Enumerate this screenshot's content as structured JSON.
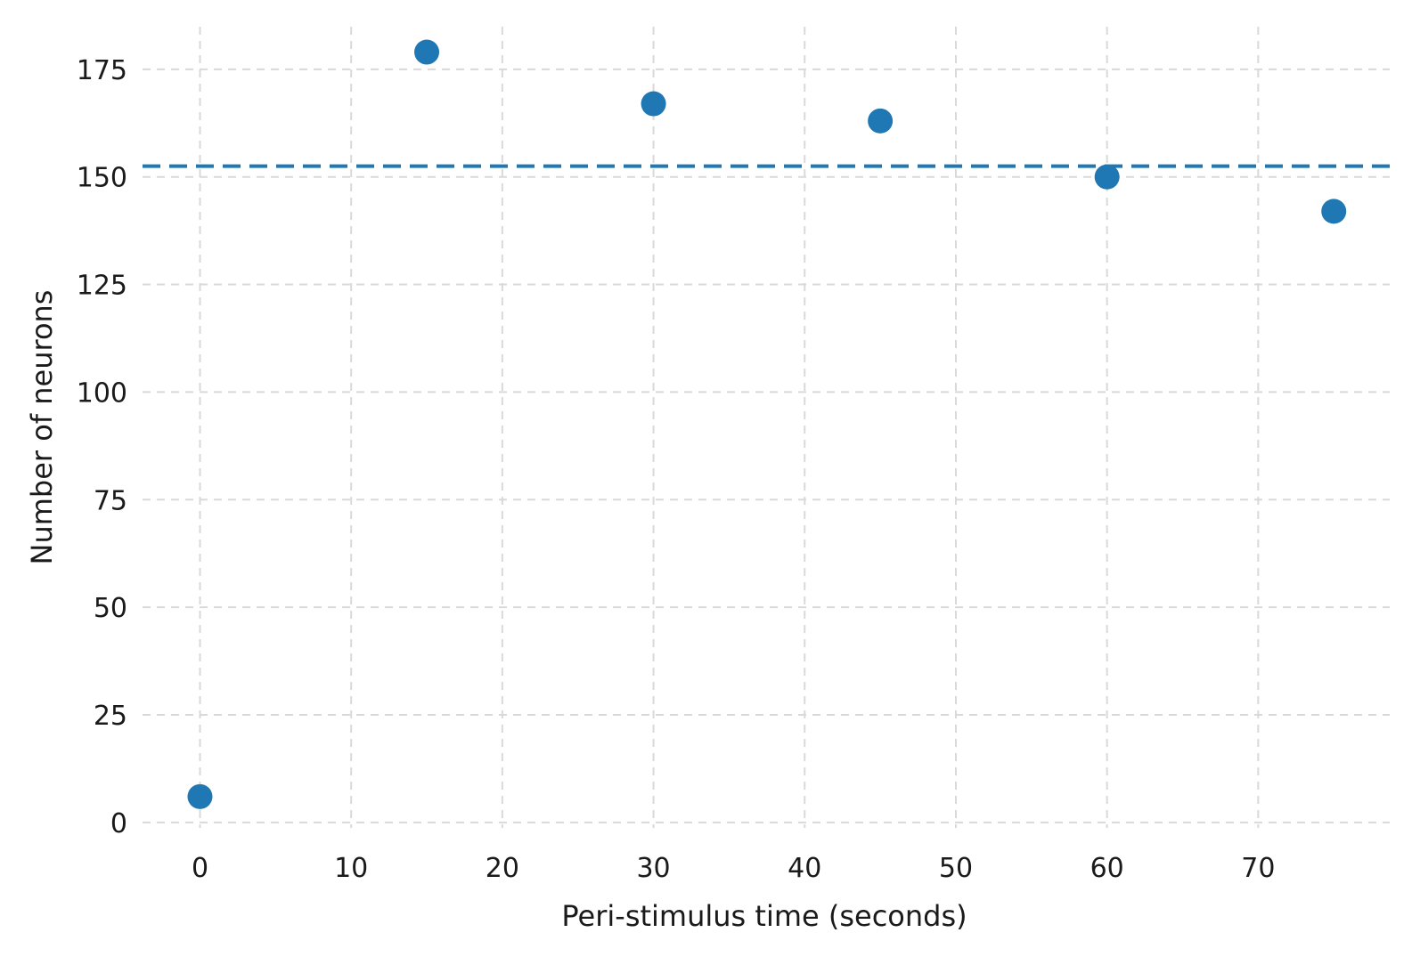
{
  "chart_data": {
    "type": "scatter",
    "xlabel": "Peri-stimulus time (seconds)",
    "ylabel": "Number of neurons",
    "xlim": [
      -3.8,
      78.7
    ],
    "ylim": [
      -5,
      188
    ],
    "x_ticks": [
      0,
      10,
      20,
      30,
      40,
      50,
      60,
      70
    ],
    "y_ticks": [
      0,
      25,
      50,
      75,
      100,
      125,
      150,
      175
    ],
    "grid": true,
    "series": [
      {
        "x": [
          0,
          15,
          30,
          45,
          60,
          75
        ],
        "y": [
          6,
          179,
          167,
          163,
          150,
          142
        ]
      }
    ],
    "reference_line": {
      "orientation": "horizontal",
      "y": 152.5,
      "style": "dashed"
    },
    "colors": {
      "points": "#1f77b4",
      "reference_line": "#1f77b4",
      "grid": "#d9d9d9"
    }
  }
}
